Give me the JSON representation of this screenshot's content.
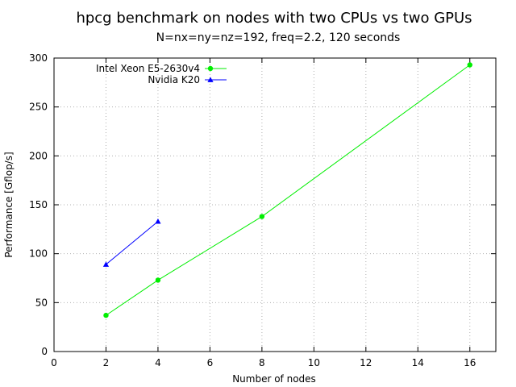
{
  "chart_data": {
    "type": "line",
    "title": "hpcg benchmark on nodes with two CPUs vs two GPUs",
    "subtitle": "N=nx=ny=nz=192, freq=2.2, 120 seconds",
    "xlabel": "Number of nodes",
    "ylabel": "Performance [Gflop/s]",
    "xlim": [
      0,
      17
    ],
    "ylim": [
      0,
      300
    ],
    "xticks": [
      0,
      2,
      4,
      6,
      8,
      10,
      12,
      14,
      16
    ],
    "yticks": [
      0,
      50,
      100,
      150,
      200,
      250,
      300
    ],
    "grid": true,
    "legend_position": "top-left",
    "series": [
      {
        "name": "Intel Xeon E5-2630v4",
        "color": "#00ee00",
        "marker": "circle",
        "x": [
          2,
          4,
          8,
          16
        ],
        "y": [
          37,
          73,
          138,
          293
        ]
      },
      {
        "name": "Nvidia K20",
        "color": "#0000ff",
        "marker": "triangle",
        "x": [
          2,
          4
        ],
        "y": [
          89,
          133
        ]
      }
    ]
  }
}
